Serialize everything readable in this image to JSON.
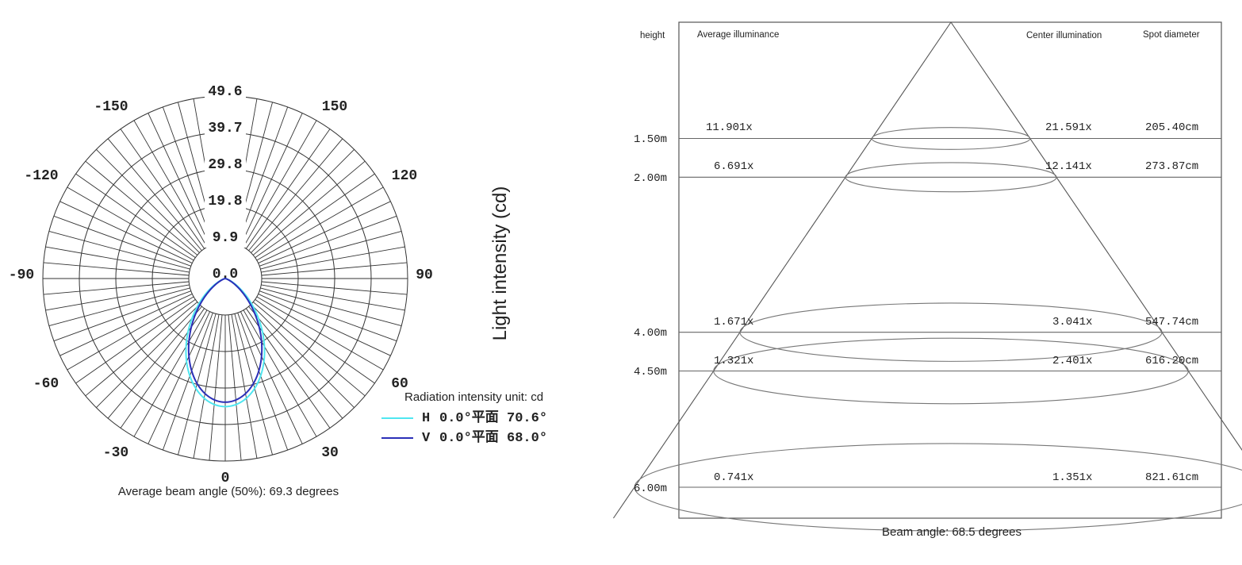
{
  "colors": {
    "grid": "#333333",
    "h_curve": "#4fe6f0",
    "v_curve": "#2b2fb8",
    "text": "#222222"
  },
  "chart_data": [
    {
      "type": "polar",
      "angle_labels": [
        "-150",
        "150",
        "-120",
        "120",
        "-90",
        "90",
        "-60",
        "60",
        "-30",
        "30",
        "0"
      ],
      "radial_labels": [
        "49.6",
        "39.7",
        "29.8",
        "19.8",
        "9.9",
        "0.0"
      ],
      "rlim": [
        0,
        49.6
      ],
      "series": [
        {
          "name": "H 0.0°平面 70.6°",
          "beam_angle": 70.6,
          "peak": 43.5,
          "color": "#4fe6f0"
        },
        {
          "name": "V 0.0°平面 68.0°",
          "beam_angle": 68.0,
          "peak": 42.0,
          "color": "#2b2fb8"
        }
      ],
      "legend_title": "Radiation intensity unit: cd",
      "legend": [
        {
          "marker": "H",
          "text": "0.0°平面 70.6°"
        },
        {
          "marker": "V",
          "text": "0.0°平面 68.0°"
        }
      ],
      "ylabel": "Light intensity (cd)",
      "footer": "Average beam angle (50%): 69.3 degrees"
    },
    {
      "type": "table",
      "headers": {
        "height": "height",
        "avg": "Average illuminance",
        "center": "Center illumination",
        "spot": "Spot diameter"
      },
      "rows": [
        {
          "height": "1.50m",
          "height_m": 1.5,
          "avg": "11.901x",
          "center": "21.591x",
          "spot": "205.40cm"
        },
        {
          "height": "2.00m",
          "height_m": 2.0,
          "avg": "6.691x",
          "center": "12.141x",
          "spot": "273.87cm"
        },
        {
          "height": "4.00m",
          "height_m": 4.0,
          "avg": "1.671x",
          "center": "3.041x",
          "spot": "547.74cm"
        },
        {
          "height": "4.50m",
          "height_m": 4.5,
          "avg": "1.321x",
          "center": "2.401x",
          "spot": "616.20cm"
        },
        {
          "height": "6.00m",
          "height_m": 6.0,
          "avg": "0.741x",
          "center": "1.351x",
          "spot": "821.61cm"
        }
      ],
      "footer": "Beam angle: 68.5 degrees"
    }
  ]
}
